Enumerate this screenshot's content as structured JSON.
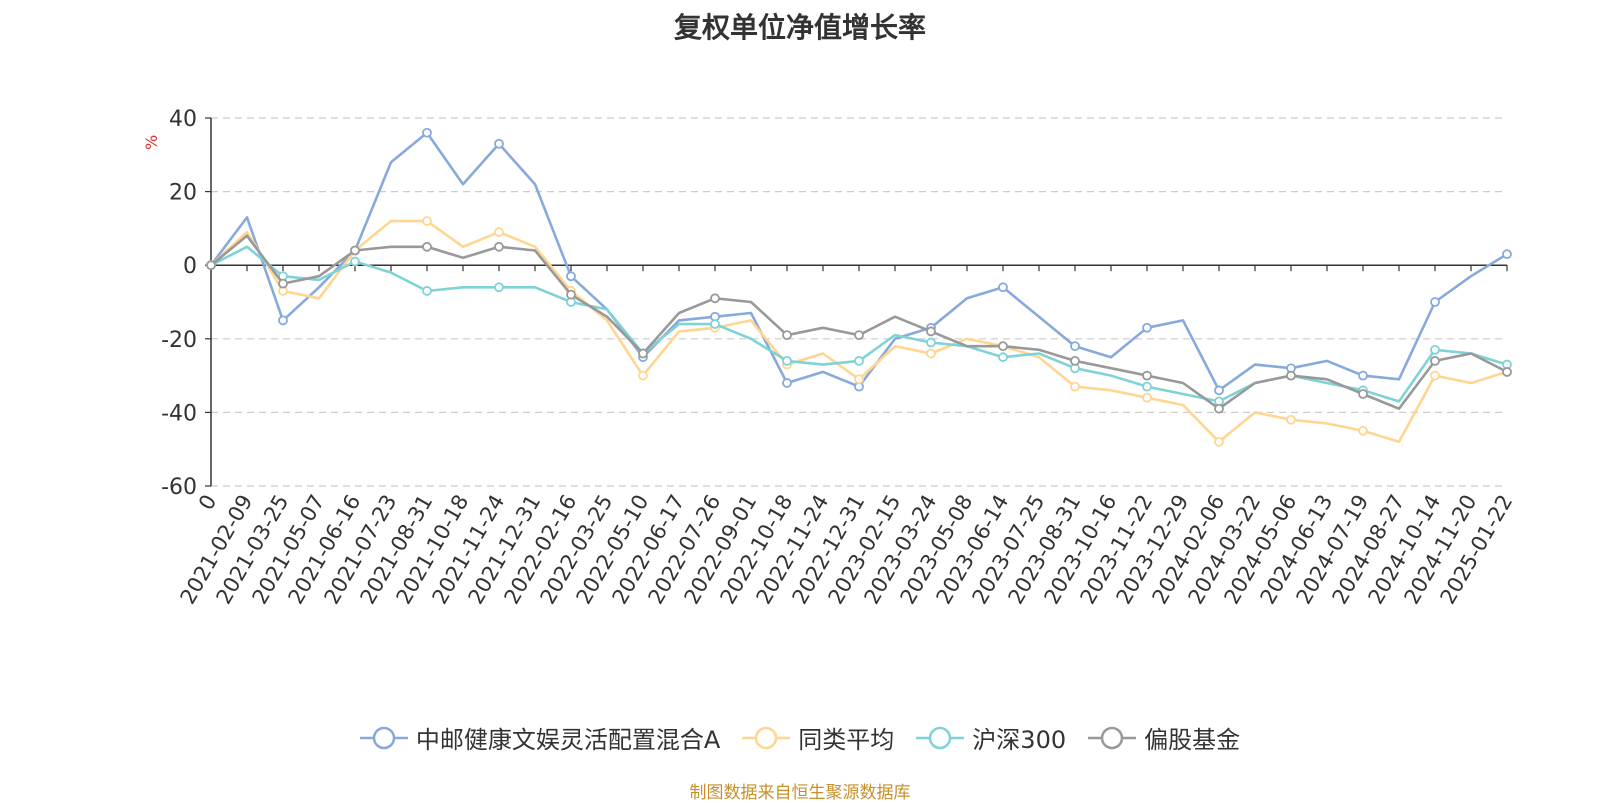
{
  "title": "复权单位净值增长率",
  "source_note": "制图数据来自恒生聚源数据库",
  "chart_data": {
    "type": "line",
    "ylabel": "%",
    "ylim": [
      -60,
      40
    ],
    "yticks": [
      -60,
      -40,
      -20,
      0,
      20,
      40
    ],
    "grid": true,
    "legend_position": "bottom-center",
    "categories": [
      "0",
      "2021-02-09",
      "2021-03-25",
      "2021-05-07",
      "2021-06-16",
      "2021-07-23",
      "2021-08-31",
      "2021-10-18",
      "2021-11-24",
      "2021-12-31",
      "2022-02-16",
      "2022-03-25",
      "2022-05-10",
      "2022-06-17",
      "2022-07-26",
      "2022-09-01",
      "2022-10-18",
      "2022-11-24",
      "2022-12-31",
      "2023-02-15",
      "2023-03-24",
      "2023-05-08",
      "2023-06-14",
      "2023-07-25",
      "2023-08-31",
      "2023-10-16",
      "2023-11-22",
      "2023-12-29",
      "2024-02-06",
      "2024-03-22",
      "2024-05-06",
      "2024-06-13",
      "2024-07-19",
      "2024-08-27",
      "2024-10-14",
      "2024-11-20",
      "2025-01-22"
    ],
    "series": [
      {
        "name": "中邮健康文娱灵活配置混合A",
        "color": "#87a9dc",
        "values": [
          0,
          13,
          -15,
          -6,
          4,
          28,
          36,
          22,
          33,
          22,
          -3,
          -12,
          -25,
          -15,
          -14,
          -13,
          -32,
          -29,
          -33,
          -20,
          -17,
          -9,
          -6,
          -14,
          -22,
          -25,
          -17,
          -15,
          -34,
          -27,
          -28,
          -26,
          -30,
          -31,
          -10,
          -3,
          3
        ]
      },
      {
        "name": "同类平均",
        "color": "#ffd591",
        "values": [
          0,
          9,
          -7,
          -9,
          4,
          12,
          12,
          5,
          9,
          5,
          -7,
          -15,
          -30,
          -18,
          -17,
          -15,
          -27,
          -24,
          -31,
          -22,
          -24,
          -20,
          -22,
          -25,
          -33,
          -34,
          -36,
          -38,
          -48,
          -40,
          -42,
          -43,
          -45,
          -48,
          -30,
          -32,
          -29
        ]
      },
      {
        "name": "沪深300",
        "color": "#7fd3d6",
        "values": [
          0,
          5,
          -3,
          -4,
          1,
          -2,
          -7,
          -6,
          -6,
          -6,
          -10,
          -12,
          -24,
          -16,
          -16,
          -20,
          -26,
          -27,
          -26,
          -19,
          -21,
          -22,
          -25,
          -24,
          -28,
          -30,
          -33,
          -35,
          -37,
          -32,
          -30,
          -32,
          -34,
          -37,
          -23,
          -24,
          -27
        ]
      },
      {
        "name": "偏股基金",
        "color": "#999999",
        "values": [
          0,
          8,
          -5,
          -3,
          4,
          5,
          5,
          2,
          5,
          4,
          -8,
          -14,
          -24,
          -13,
          -9,
          -10,
          -19,
          -17,
          -19,
          -14,
          -18,
          -22,
          -22,
          -23,
          -26,
          -28,
          -30,
          -32,
          -39,
          -32,
          -30,
          -31,
          -35,
          -39,
          -26,
          -24,
          -29
        ]
      }
    ]
  }
}
